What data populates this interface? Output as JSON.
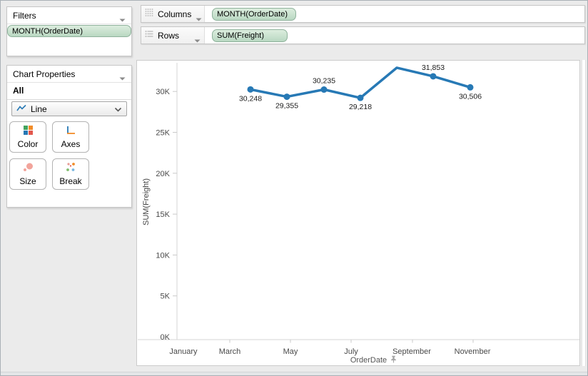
{
  "filters_panel": {
    "title": "Filters",
    "pill": "MONTH(OrderDate)"
  },
  "chart_properties": {
    "title": "Chart Properties",
    "scope_label": "All",
    "type_selector": {
      "value": "Line",
      "icon": "line-chart-icon"
    },
    "buttons": [
      {
        "id": "color",
        "label": "Color"
      },
      {
        "id": "axes",
        "label": "Axes"
      },
      {
        "id": "size",
        "label": "Size"
      },
      {
        "id": "break",
        "label": "Break"
      }
    ]
  },
  "shelves": {
    "columns": {
      "label": "Columns",
      "pill": "MONTH(OrderDate)"
    },
    "rows": {
      "label": "Rows",
      "pill": "SUM(Freight)"
    }
  },
  "chart_data": {
    "type": "line",
    "title": "",
    "xlabel": "OrderDate",
    "ylabel": "SUM(Freight)",
    "x_tick_labels": [
      "January",
      "March",
      "May",
      "July",
      "September",
      "November"
    ],
    "y_ticks": [
      {
        "label": "0K",
        "value": 0
      },
      {
        "label": "5K",
        "value": 5000
      },
      {
        "label": "10K",
        "value": 10000
      },
      {
        "label": "15K",
        "value": 15000
      },
      {
        "label": "20K",
        "value": 20000
      },
      {
        "label": "25K",
        "value": 25000
      },
      {
        "label": "30K",
        "value": 30000
      }
    ],
    "ylim": [
      0,
      33500
    ],
    "grid": false,
    "legend": "none",
    "series": [
      {
        "name": "SUM(Freight)",
        "color": "#2779B5",
        "points": [
          {
            "month": "March",
            "value": 30248,
            "label": "30,248",
            "label_side": "below",
            "marker": true
          },
          {
            "month": "April",
            "value": 29355,
            "label": "29,355",
            "label_side": "below",
            "marker": true
          },
          {
            "month": "May",
            "value": 30235,
            "label": "30,235",
            "label_side": "above",
            "marker": true
          },
          {
            "month": "June",
            "value": 29218,
            "label": "29,218",
            "label_side": "below",
            "marker": true
          },
          {
            "month": "July",
            "value": 32900,
            "label": "",
            "label_side": "none",
            "marker": false
          },
          {
            "month": "August",
            "value": 31853,
            "label": "31,853",
            "label_side": "above",
            "marker": true
          },
          {
            "month": "September",
            "value": 30506,
            "label": "30,506",
            "label_side": "below",
            "marker": true
          }
        ]
      }
    ]
  },
  "colors": {
    "line_blue": "#2779B5",
    "pill_green": "#BCDAC4",
    "pill_border": "#8FB29C",
    "chrome_bg": "#EBEBEB",
    "axis_text": "#4A4A4A",
    "axis_line": "#D6D6D6"
  }
}
